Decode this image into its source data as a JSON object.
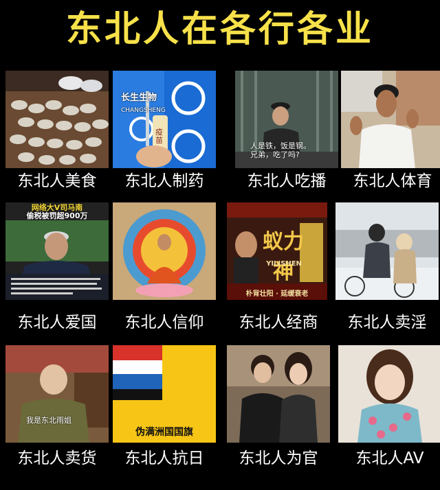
{
  "title": "东北人在各行各业",
  "cells": [
    {
      "caption": "东北人美食"
    },
    {
      "caption": "东北人制药",
      "brand": "长生生物",
      "brand_en": "CHANGSHENG",
      "vial": "疫苗"
    },
    {
      "caption": "东北人吃播",
      "subtitle_line1": "人是铁，饭是钢。",
      "subtitle_line2": "兄弟，吃了吗?"
    },
    {
      "caption": "东北人体育"
    },
    {
      "caption": "东北人爱国",
      "headline1": "网络大V司马南",
      "headline2": "偷税被罚超900万"
    },
    {
      "caption": "东北人信仰"
    },
    {
      "caption": "东北人经商",
      "product_cn": "蚁力神",
      "product_en": "YILISHEN",
      "product_tagline": "朴背壮阳 · 延缓衰老"
    },
    {
      "caption": "东北人卖淫"
    },
    {
      "caption": "东北人卖货",
      "subtitle": "我是东北雨姐"
    },
    {
      "caption": "东北人抗日",
      "flag_label": "伪满洲国国旗"
    },
    {
      "caption": "东北人为官"
    },
    {
      "caption": "东北人AV"
    }
  ],
  "colors": {
    "title": "#f7e14a",
    "caption": "#ffffff",
    "background": "#000000"
  }
}
